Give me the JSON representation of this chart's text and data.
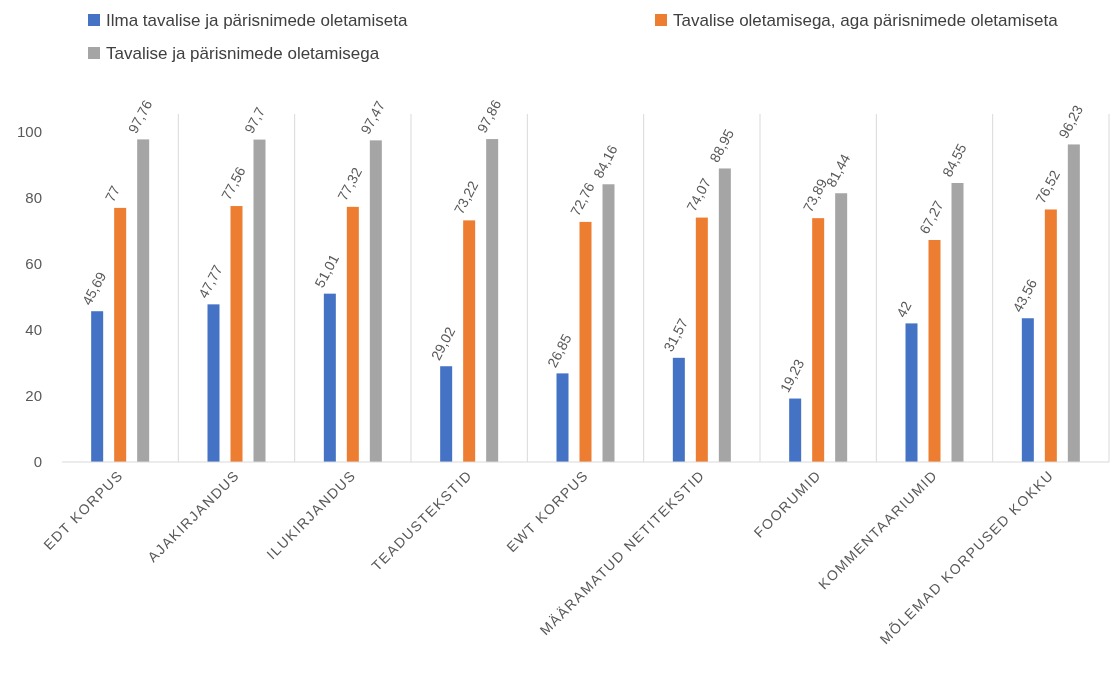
{
  "chart_data": {
    "type": "bar",
    "categories": [
      "EDT KORPUS",
      "AJAKIRJANDUS",
      "ILUKIRJANDUS",
      "TEADUSTEKSTID",
      "EWT KORPUS",
      "MÄÄRAMATUD NETITEKSTID",
      "FOORUMID",
      "KOMMENTAARIUMID",
      "MÕLEMAD KORPUSED KOKKU"
    ],
    "series": [
      {
        "name": "Ilma tavalise ja pärisnimede oletamiseta",
        "color": "#4472c4",
        "values": [
          45.69,
          47.77,
          51.01,
          29.02,
          26.85,
          31.57,
          19.23,
          42,
          43.56
        ],
        "value_labels": [
          "45,69",
          "47,77",
          "51,01",
          "29,02",
          "26,85",
          "31,57",
          "19,23",
          "42",
          "43,56"
        ]
      },
      {
        "name": "Tavalise oletamisega, aga pärisnimede oletamiseta",
        "color": "#ed7d31",
        "values": [
          77,
          77.56,
          77.32,
          73.22,
          72.76,
          74.07,
          73.89,
          67.27,
          76.52
        ],
        "value_labels": [
          "77",
          "77,56",
          "77,32",
          "73,22",
          "72,76",
          "74,07",
          "73,89",
          "67,27",
          "76,52"
        ]
      },
      {
        "name": "Tavalise ja pärisnimede oletamisega",
        "color": "#a5a5a5",
        "values": [
          97.76,
          97.7,
          97.47,
          97.86,
          84.16,
          88.95,
          81.44,
          84.55,
          96.23
        ],
        "value_labels": [
          "97,76",
          "97,7",
          "97,47",
          "97,86",
          "84,16",
          "88,95",
          "81,44",
          "84,55",
          "96,23"
        ]
      }
    ],
    "ylim": [
      0,
      100
    ],
    "yticks": [
      0,
      20,
      40,
      60,
      80,
      100
    ],
    "grid": "x",
    "legend": "top"
  }
}
